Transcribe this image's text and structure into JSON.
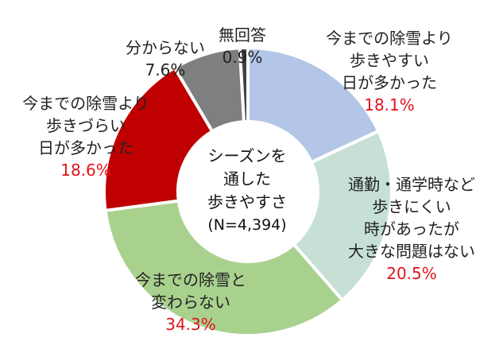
{
  "chart_data": {
    "type": "pie",
    "title": "",
    "center_label": [
      "シーズンを",
      "通した",
      "歩きやすさ"
    ],
    "center_n": "(N=4,394)",
    "slices": [
      {
        "label": [
          "今までの除雪より",
          "歩きやすい",
          "日が多かった"
        ],
        "value": 18.1,
        "value_text": "18.1%",
        "color": "#b3c6e7"
      },
      {
        "label": [
          "通勤・通学時など",
          "歩きにくい",
          "時があったが",
          "大きな問題はない"
        ],
        "value": 20.5,
        "value_text": "20.5%",
        "color": "#c6e0d6"
      },
      {
        "label": [
          "今までの除雪と",
          "変わらない"
        ],
        "value": 34.3,
        "value_text": "34.3%",
        "color": "#a9d18e"
      },
      {
        "label": [
          "今までの除雪より",
          "歩きづらい",
          "日が多かった"
        ],
        "value": 18.6,
        "value_text": "18.6%",
        "color": "#c00000"
      },
      {
        "label": [
          "分からない"
        ],
        "value": 7.6,
        "value_text": "7.6%",
        "color": "#7f7f7f"
      },
      {
        "label": [
          "無回答"
        ],
        "value": 0.9,
        "value_text": "0.9%",
        "color": "#404040"
      }
    ]
  }
}
